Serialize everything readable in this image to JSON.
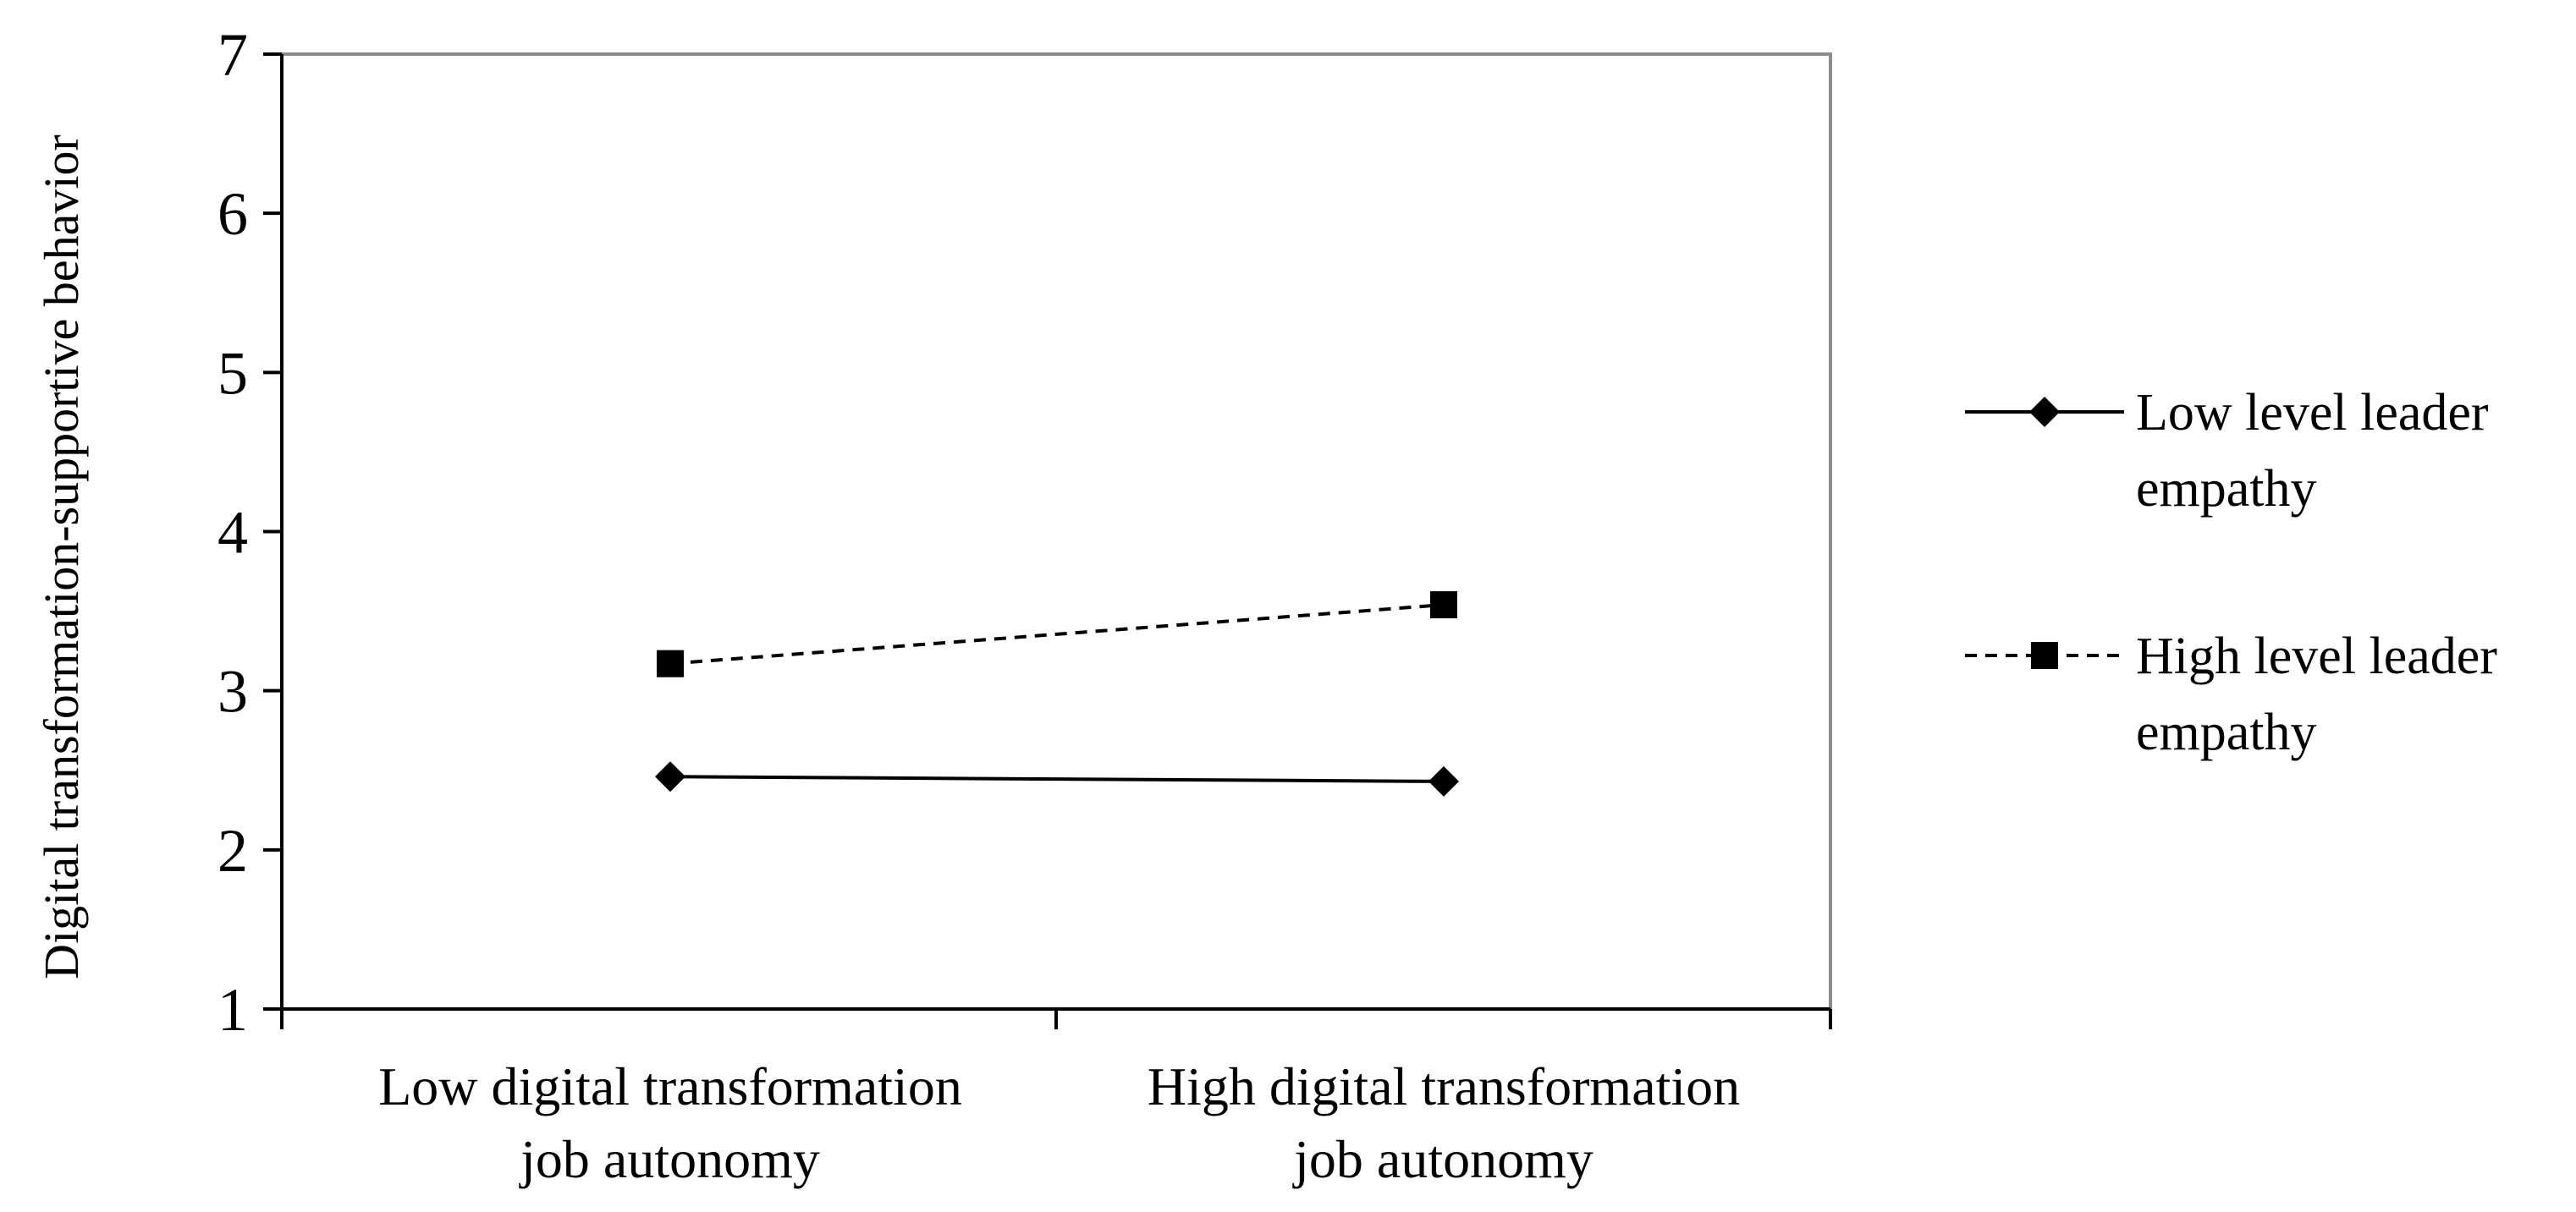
{
  "chart_data": {
    "type": "line",
    "categories": [
      [
        "Low digital transformation",
        "job autonomy"
      ],
      [
        "High digital transformation",
        "job autonomy"
      ]
    ],
    "ylabel": "Digital transformation-supportive behavior",
    "xlabel": "",
    "ylim": [
      1,
      7
    ],
    "yticks": [
      "1",
      "2",
      "3",
      "4",
      "5",
      "6",
      "7"
    ],
    "grid": false,
    "legend_position": "right",
    "series": [
      {
        "name": [
          "Low level leader",
          "empathy"
        ],
        "values": [
          2.46,
          2.43
        ],
        "marker": "diamond",
        "line_style": "solid",
        "color": "#000000"
      },
      {
        "name": [
          "High level leader",
          "empathy"
        ],
        "values": [
          3.17,
          3.54
        ],
        "marker": "square",
        "line_style": "dashed",
        "color": "#000000"
      }
    ],
    "colors": {
      "axis": "#000000",
      "plot_border": "#8c8c8c",
      "background": "#ffffff"
    }
  }
}
